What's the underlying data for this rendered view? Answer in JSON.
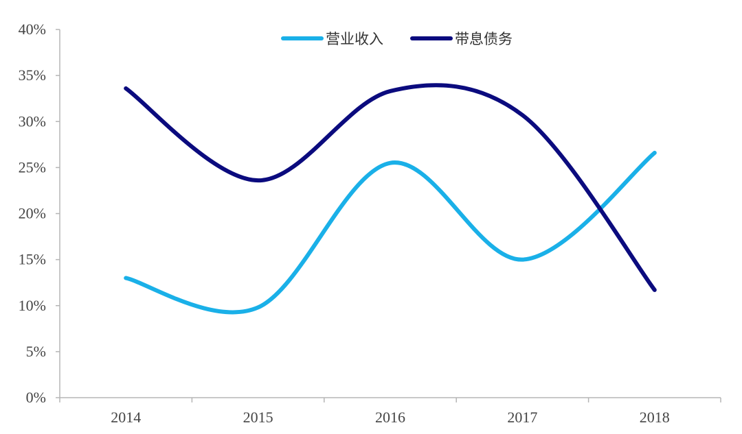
{
  "chart_data": {
    "type": "line",
    "categories": [
      "2014",
      "2015",
      "2016",
      "2017",
      "2018"
    ],
    "series": [
      {
        "name": "营业收入",
        "values": [
          13.0,
          9.8,
          25.5,
          15.0,
          26.6
        ],
        "color": "#1AB0E8"
      },
      {
        "name": "带息债务",
        "values": [
          33.6,
          23.6,
          33.3,
          30.7,
          11.7
        ],
        "color": "#0B0B7E"
      }
    ],
    "y_tick_labels": [
      "0%",
      "5%",
      "10%",
      "15%",
      "20%",
      "25%",
      "30%",
      "35%",
      "40%"
    ],
    "ylim": [
      0,
      40
    ],
    "y_unit": "%",
    "smooth": true,
    "grid": false,
    "legend_position": "top-center"
  }
}
